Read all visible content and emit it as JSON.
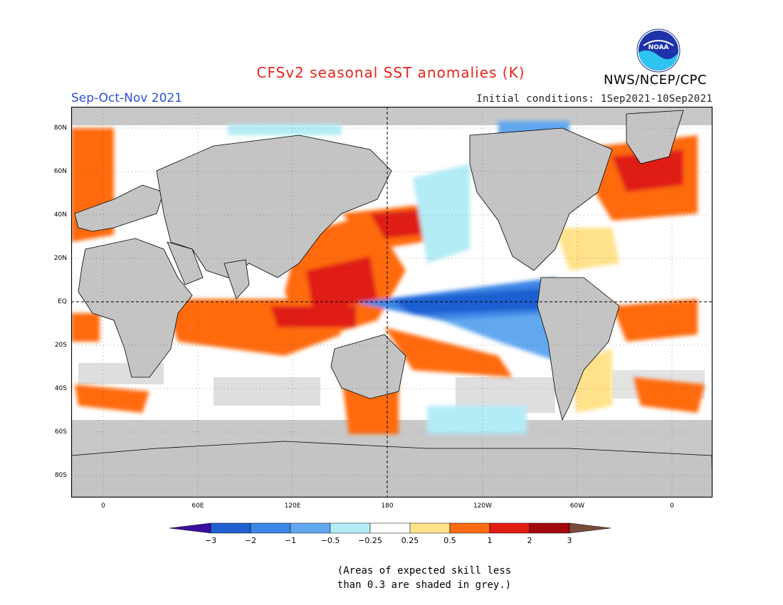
{
  "title": "CFSv2 seasonal SST anomalies (K)",
  "agency": "NWS/NCEP/CPC",
  "logo_text": "NOAA",
  "season": "Sep-Oct-Nov 2021",
  "initial_conditions": "Initial conditions: 1Sep2021-10Sep2021",
  "lat_labels": [
    "80N",
    "60N",
    "40N",
    "20N",
    "EQ",
    "20S",
    "40S",
    "60S",
    "80S"
  ],
  "lon_labels": [
    "0",
    "60E",
    "120E",
    "180",
    "120W",
    "60W",
    "0"
  ],
  "colorbar": {
    "ticks": [
      "-3",
      "-2",
      "-1",
      "-0.5",
      "-0.25",
      "0.25",
      "0.5",
      "1",
      "2",
      "3"
    ],
    "colors": [
      "#3a0f9e",
      "#1f5fd0",
      "#3c86e6",
      "#62a8f0",
      "#b4ecf6",
      "#ffffff",
      "#ffe28a",
      "#ff6b10",
      "#e01c12",
      "#a3080c",
      "#7a4a3a"
    ]
  },
  "note": [
    "(Areas of expected skill less",
    "than 0.3 are shaded in grey.)"
  ],
  "colors": {
    "land": "#c4c4c4",
    "skill_grey": "#c8c8c8",
    "coast": "#000000"
  }
}
